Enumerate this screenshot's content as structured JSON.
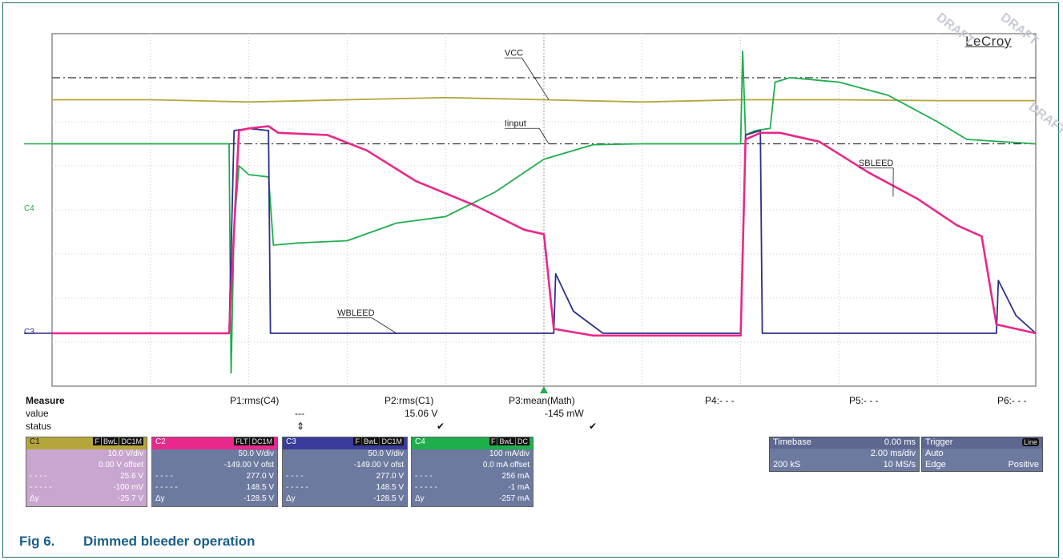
{
  "brand": "LeCroy",
  "watermark": [
    "DRAFT",
    "DRAFT",
    "DRAFT"
  ],
  "caption": {
    "number": "Fig 6.",
    "title": "Dimmed bleeder operation"
  },
  "channel_labels": {
    "c4": "C4",
    "c3": "C3"
  },
  "chart_data": {
    "type": "line",
    "x_grid_divs": 10,
    "y_grid_divs": 8,
    "grid": true,
    "annotations": [
      "VCC",
      "Iinput",
      "SBLEED",
      "WBLEED"
    ],
    "series": [
      {
        "name": "VCC",
        "color": "#b5a63a",
        "points": [
          [
            0,
            6.5
          ],
          [
            1,
            6.5
          ],
          [
            2,
            6.45
          ],
          [
            3,
            6.5
          ],
          [
            4,
            6.55
          ],
          [
            5,
            6.5
          ],
          [
            6,
            6.45
          ],
          [
            7,
            6.5
          ],
          [
            8,
            6.5
          ],
          [
            9,
            6.48
          ],
          [
            10,
            6.48
          ]
        ]
      },
      {
        "name": "Iinput",
        "color": "#1fae4c",
        "points": [
          [
            0,
            5.5
          ],
          [
            1.8,
            5.5
          ],
          [
            1.82,
            0.3
          ],
          [
            1.85,
            3.6
          ],
          [
            1.9,
            5.0
          ],
          [
            2.0,
            4.8
          ],
          [
            2.2,
            4.75
          ],
          [
            2.25,
            3.2
          ],
          [
            2.5,
            3.25
          ],
          [
            3.0,
            3.3
          ],
          [
            3.5,
            3.7
          ],
          [
            4.0,
            3.85
          ],
          [
            4.5,
            4.4
          ],
          [
            5.0,
            5.15
          ],
          [
            5.5,
            5.48
          ],
          [
            6.0,
            5.5
          ],
          [
            7.0,
            5.5
          ],
          [
            7.02,
            7.6
          ],
          [
            7.05,
            5.7
          ],
          [
            7.15,
            5.8
          ],
          [
            7.3,
            5.85
          ],
          [
            7.35,
            6.9
          ],
          [
            7.5,
            7.0
          ],
          [
            8.0,
            6.9
          ],
          [
            8.5,
            6.6
          ],
          [
            9.0,
            6.0
          ],
          [
            9.3,
            5.6
          ],
          [
            10.0,
            5.5
          ]
        ]
      },
      {
        "name": "SBLEED",
        "color": "#e8288a",
        "points": [
          [
            0,
            1.2
          ],
          [
            1.8,
            1.2
          ],
          [
            1.9,
            5.8
          ],
          [
            2.0,
            5.85
          ],
          [
            2.2,
            5.9
          ],
          [
            2.3,
            5.75
          ],
          [
            2.8,
            5.7
          ],
          [
            3.2,
            5.35
          ],
          [
            3.7,
            4.65
          ],
          [
            4.3,
            4.1
          ],
          [
            4.8,
            3.55
          ],
          [
            5.0,
            3.45
          ],
          [
            5.1,
            1.3
          ],
          [
            5.5,
            1.15
          ],
          [
            7.0,
            1.15
          ],
          [
            7.05,
            5.6
          ],
          [
            7.2,
            5.75
          ],
          [
            7.4,
            5.75
          ],
          [
            7.8,
            5.55
          ],
          [
            8.3,
            4.85
          ],
          [
            8.8,
            4.25
          ],
          [
            9.2,
            3.65
          ],
          [
            9.45,
            3.4
          ],
          [
            9.6,
            1.4
          ],
          [
            10.0,
            1.2
          ]
        ]
      },
      {
        "name": "WBLEED",
        "color": "#2e2f8a",
        "points": [
          [
            0,
            1.2
          ],
          [
            1.8,
            1.2
          ],
          [
            1.85,
            5.8
          ],
          [
            2.0,
            5.85
          ],
          [
            2.2,
            5.8
          ],
          [
            2.22,
            1.2
          ],
          [
            5.1,
            1.2
          ],
          [
            5.12,
            2.55
          ],
          [
            5.3,
            1.7
          ],
          [
            5.6,
            1.2
          ],
          [
            7.0,
            1.2
          ],
          [
            7.05,
            5.7
          ],
          [
            7.2,
            5.8
          ],
          [
            7.22,
            1.2
          ],
          [
            9.6,
            1.2
          ],
          [
            9.62,
            2.4
          ],
          [
            9.8,
            1.6
          ],
          [
            10.0,
            1.2
          ]
        ]
      }
    ]
  },
  "measure": {
    "title": "Measure",
    "row_value": "value",
    "row_status": "status",
    "params": [
      {
        "name": "P1:rms(C4)",
        "value": "---",
        "status": "⇕"
      },
      {
        "name": "P2:rms(C1)",
        "value": "15.06 V",
        "status": "✔"
      },
      {
        "name": "P3:mean(Math)",
        "value": "-145 mW",
        "status": "✔"
      },
      {
        "name": "P4:- - -",
        "value": "",
        "status": ""
      },
      {
        "name": "P5:- - -",
        "value": "",
        "status": ""
      },
      {
        "name": "P6:- - -",
        "value": "",
        "status": ""
      }
    ]
  },
  "channels": [
    {
      "id": "C1",
      "color": "#c9a6cf",
      "hdr_color": "#b5a63a",
      "tags": [
        "F",
        "BwL",
        "DC1M"
      ],
      "vdiv": "10.0 V/div",
      "offset": "0.00 V offset",
      "cur1": "25.6 V",
      "cur2": "-100 mV",
      "dy": "-25.7 V"
    },
    {
      "id": "C2",
      "color": "#6d7aa0",
      "hdr_color": "#e8288a",
      "tags": [
        "FLT",
        "DC1M"
      ],
      "vdiv": "50.0 V/div",
      "offset": "-149.00 V ofst",
      "cur1": "277.0 V",
      "cur2": "148.5 V",
      "dy": "-128.5 V"
    },
    {
      "id": "C3",
      "color": "#6d7aa0",
      "hdr_color": "#3a3b9a",
      "tags": [
        "F",
        "BwL",
        "DC1M"
      ],
      "vdiv": "50.0 V/div",
      "offset": "-149.00 V ofst",
      "cur1": "277.0 V",
      "cur2": "148.5 V",
      "dy": "-128.5 V"
    },
    {
      "id": "C4",
      "color": "#6d7aa0",
      "hdr_color": "#1fae4c",
      "tags": [
        "F",
        "BwL",
        "DC"
      ],
      "vdiv": "100 mA/div",
      "offset": "0.0 mA offset",
      "cur1": "256 mA",
      "cur2": "-1 mA",
      "dy": "-257 mA"
    }
  ],
  "cursor_labels": {
    "c1": "- - - -",
    "c2": "- - - - -",
    "dy": "Δy"
  },
  "timebase": {
    "label": "Timebase",
    "delay": "0.00 ms",
    "tdiv": "2.00 ms/div",
    "samples": "200 kS",
    "rate": "10 MS/s"
  },
  "trigger": {
    "label": "Trigger",
    "badge": "Line",
    "mode": "Auto",
    "type": "Edge",
    "slope": "Positive"
  }
}
